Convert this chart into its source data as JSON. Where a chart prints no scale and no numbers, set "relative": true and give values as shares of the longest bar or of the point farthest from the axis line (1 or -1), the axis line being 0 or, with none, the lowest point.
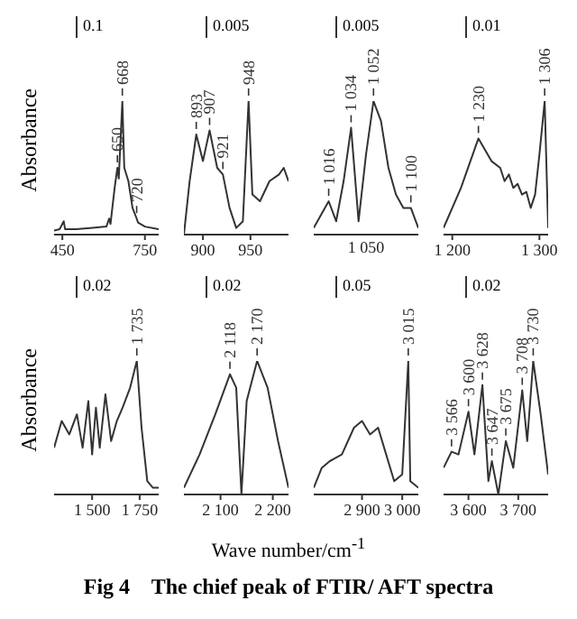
{
  "chart_data": [
    {
      "type": "line",
      "ylabel": "Absorbance",
      "relative": true,
      "xlim": [
        420,
        800
      ],
      "xticks": [
        450,
        750
      ],
      "x": [
        420,
        440,
        455,
        460,
        500,
        560,
        610,
        620,
        625,
        640,
        650,
        655,
        668,
        675,
        690,
        705,
        720,
        725,
        750,
        800
      ],
      "values": [
        0.03,
        0.04,
        0.1,
        0.04,
        0.04,
        0.05,
        0.06,
        0.12,
        0.08,
        0.35,
        0.5,
        0.42,
        1.0,
        0.5,
        0.4,
        0.2,
        0.12,
        0.09,
        0.06,
        0.04
      ],
      "color": "#333333",
      "annotations": [
        "0.1",
        {
          "text": "650",
          "x": 650,
          "y": 0.5
        },
        {
          "text": "668",
          "x": 668,
          "y": 1.0
        },
        {
          "text": "720",
          "x": 720,
          "y": 0.12
        }
      ]
    },
    {
      "type": "line",
      "relative": true,
      "xlim": [
        880,
        990
      ],
      "xticks": [
        900,
        950
      ],
      "x": [
        880,
        886,
        893,
        900,
        907,
        915,
        921,
        928,
        935,
        942,
        948,
        952,
        960,
        970,
        980,
        985,
        990
      ],
      "values": [
        0.0,
        0.4,
        0.75,
        0.55,
        0.78,
        0.5,
        0.45,
        0.2,
        0.05,
        0.1,
        1.0,
        0.3,
        0.25,
        0.4,
        0.45,
        0.5,
        0.4
      ],
      "color": "#333333",
      "annotations": [
        "0.005",
        {
          "text": "893",
          "x": 893,
          "y": 0.75
        },
        {
          "text": "907",
          "x": 907,
          "y": 0.78
        },
        {
          "text": "921",
          "x": 921,
          "y": 0.45
        },
        {
          "text": "948",
          "x": 948,
          "y": 1.0
        }
      ]
    },
    {
      "type": "line",
      "relative": true,
      "categories": [
        null,
        null,
        "1 016",
        null,
        null,
        "1 034",
        null,
        null,
        "1 052",
        null,
        null,
        null,
        null,
        "1 100",
        null
      ],
      "values": [
        0.05,
        0.15,
        0.25,
        0.1,
        0.4,
        0.8,
        0.1,
        0.6,
        1.0,
        0.85,
        0.5,
        0.3,
        0.2,
        0.2,
        0.05
      ],
      "color": "#333333",
      "annotations": [
        "0.005",
        "1 050"
      ]
    },
    {
      "type": "line",
      "relative": true,
      "xlim": [
        1190,
        1310
      ],
      "xticks": [
        {
          "value": 1200,
          "label": "1 200"
        },
        {
          "value": 1300,
          "label": "1 300"
        }
      ],
      "x": [
        1190,
        1210,
        1230,
        1245,
        1255,
        1260,
        1265,
        1270,
        1275,
        1280,
        1285,
        1290,
        1295,
        1300,
        1306,
        1310
      ],
      "values": [
        0.05,
        0.35,
        0.72,
        0.55,
        0.5,
        0.4,
        0.45,
        0.35,
        0.38,
        0.3,
        0.32,
        0.2,
        0.3,
        0.6,
        1.0,
        0.05
      ],
      "color": "#333333",
      "annotations": [
        "0.01",
        {
          "text": "1 230",
          "x": 1230,
          "y": 0.72
        },
        {
          "text": "1 306",
          "x": 1306,
          "y": 1.0
        }
      ]
    },
    {
      "type": "line",
      "ylabel": "Absorbance",
      "relative": true,
      "xlim": [
        1300,
        1850
      ],
      "xticks": [
        {
          "value": 1500,
          "label": "1 500"
        },
        {
          "value": 1750,
          "label": "1 750"
        }
      ],
      "x": [
        1300,
        1340,
        1380,
        1420,
        1450,
        1480,
        1500,
        1520,
        1540,
        1570,
        1600,
        1630,
        1660,
        1700,
        1735,
        1760,
        1790,
        1820,
        1850
      ],
      "values": [
        0.35,
        0.55,
        0.45,
        0.6,
        0.35,
        0.7,
        0.3,
        0.65,
        0.35,
        0.75,
        0.4,
        0.55,
        0.65,
        0.8,
        1.0,
        0.5,
        0.1,
        0.05,
        0.05
      ],
      "color": "#333333",
      "annotations": [
        "0.02",
        {
          "text": "1 735",
          "x": 1735,
          "y": 1.0
        }
      ]
    },
    {
      "type": "line",
      "relative": true,
      "xlim": [
        2030,
        2230
      ],
      "xticks": [
        {
          "value": 2100,
          "label": "2 100"
        },
        {
          "value": 2200,
          "label": "2 200"
        }
      ],
      "x": [
        2030,
        2060,
        2090,
        2118,
        2130,
        2140,
        2150,
        2170,
        2190,
        2210,
        2230
      ],
      "values": [
        0.05,
        0.3,
        0.6,
        0.9,
        0.8,
        0.0,
        0.7,
        1.0,
        0.8,
        0.4,
        0.05
      ],
      "color": "#333333",
      "annotations": [
        "0.02",
        {
          "text": "2 118",
          "x": 2118,
          "y": 0.9
        },
        {
          "text": "2 170",
          "x": 2170,
          "y": 1.0
        }
      ]
    },
    {
      "type": "line",
      "relative": true,
      "xlim": [
        2780,
        3040
      ],
      "xticks": [
        {
          "value": 2900,
          "label": "2 900"
        },
        {
          "value": 3000,
          "label": "3 000"
        }
      ],
      "x": [
        2780,
        2800,
        2820,
        2850,
        2880,
        2900,
        2920,
        2940,
        2960,
        2980,
        3000,
        3015,
        3020,
        3040
      ],
      "values": [
        0.05,
        0.2,
        0.25,
        0.3,
        0.5,
        0.55,
        0.45,
        0.5,
        0.3,
        0.1,
        0.15,
        1.0,
        0.1,
        0.05
      ],
      "color": "#333333",
      "annotations": [
        "0.05",
        {
          "text": "3 015",
          "x": 3015,
          "y": 1.0
        }
      ]
    },
    {
      "type": "line",
      "relative": true,
      "xlim": [
        3550,
        3760
      ],
      "xticks": [
        {
          "value": 3600,
          "label": "3 600"
        },
        {
          "value": 3700,
          "label": "3 700"
        }
      ],
      "x": [
        3550,
        3566,
        3580,
        3600,
        3612,
        3628,
        3640,
        3647,
        3660,
        3675,
        3690,
        3708,
        3718,
        3730,
        3745,
        3760
      ],
      "values": [
        0.2,
        0.32,
        0.3,
        0.62,
        0.3,
        0.82,
        0.1,
        0.25,
        0.0,
        0.4,
        0.2,
        0.78,
        0.4,
        1.0,
        0.6,
        0.15
      ],
      "color": "#333333",
      "annotations": [
        "0.02",
        {
          "text": "3 566",
          "x": 3566,
          "y": 0.32
        },
        {
          "text": "3 600",
          "x": 3600,
          "y": 0.62
        },
        {
          "text": "3 628",
          "x": 3628,
          "y": 0.82
        },
        {
          "text": "3 647",
          "x": 3647,
          "y": 0.25
        },
        {
          "text": "3 675",
          "x": 3675,
          "y": 0.4
        },
        {
          "text": "3 708",
          "x": 3708,
          "y": 0.78
        },
        {
          "text": "3 730",
          "x": 3730,
          "y": 1.0
        }
      ]
    },
    {
      "type": "other",
      "title": "Fig 4    The chief peak of FTIR/ AFT spectra",
      "annotations": [
        "Wave number/cm$^{-1}$"
      ]
    }
  ]
}
